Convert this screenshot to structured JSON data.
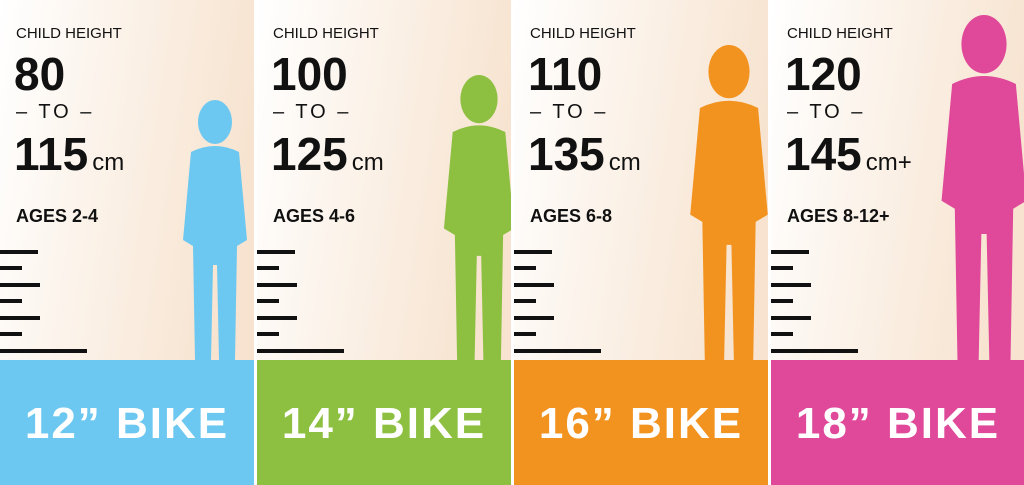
{
  "panels": [
    {
      "label": "CHILD HEIGHT",
      "min": "80",
      "to": "– TO –",
      "max": "115",
      "unit": "cm",
      "ages": "AGES 2-4",
      "bike": "12” BIKE",
      "color": "#6cc8f0"
    },
    {
      "label": "CHILD HEIGHT",
      "min": "100",
      "to": "– TO –",
      "max": "125",
      "unit": "cm",
      "ages": "AGES 4-6",
      "bike": "14” BIKE",
      "color": "#8dc041"
    },
    {
      "label": "CHILD HEIGHT",
      "min": "110",
      "to": "– TO –",
      "max": "135",
      "unit": "cm",
      "ages": "AGES 6-8",
      "bike": "16” BIKE",
      "color": "#f3931f"
    },
    {
      "label": "CHILD HEIGHT",
      "min": "120",
      "to": "– TO –",
      "max": "145",
      "unit": "cm+",
      "ages": "AGES 8-12+",
      "bike": "18” BIKE",
      "color": "#e0489a"
    }
  ]
}
